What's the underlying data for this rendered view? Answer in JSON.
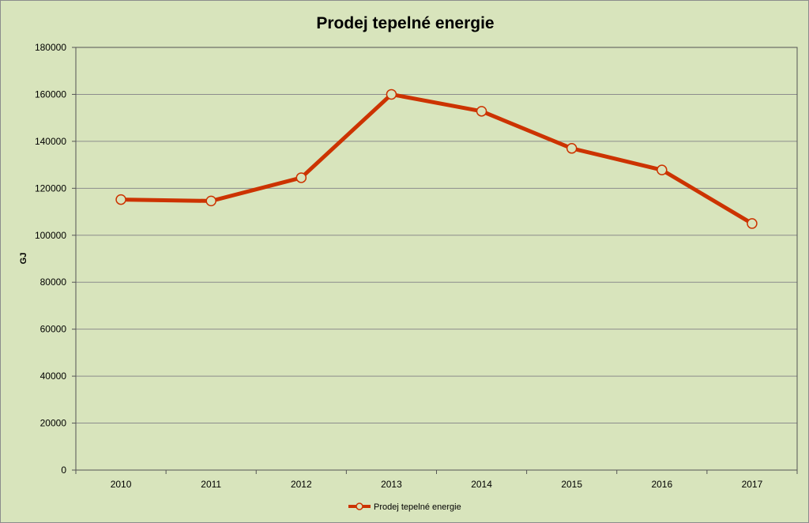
{
  "chart_data": {
    "type": "line",
    "title": "Prodej tepelné energie",
    "xlabel": "",
    "ylabel": "GJ",
    "categories": [
      "2010",
      "2011",
      "2012",
      "2013",
      "2014",
      "2015",
      "2016",
      "2017"
    ],
    "series": [
      {
        "name": "Prodej tepelné energie",
        "values": [
          115200,
          114600,
          124500,
          160000,
          152800,
          137000,
          127800,
          105000
        ],
        "color": "#cc3300",
        "marker_fill": "#d8e4bc"
      }
    ],
    "ylim": [
      0,
      180000
    ],
    "yticks": [
      "0",
      "20000",
      "40000",
      "60000",
      "80000",
      "100000",
      "120000",
      "140000",
      "160000",
      "180000"
    ],
    "grid": true,
    "legend_position": "bottom",
    "plot_background": "#d8e4bc",
    "gridline_color": "#8c8c8c"
  }
}
